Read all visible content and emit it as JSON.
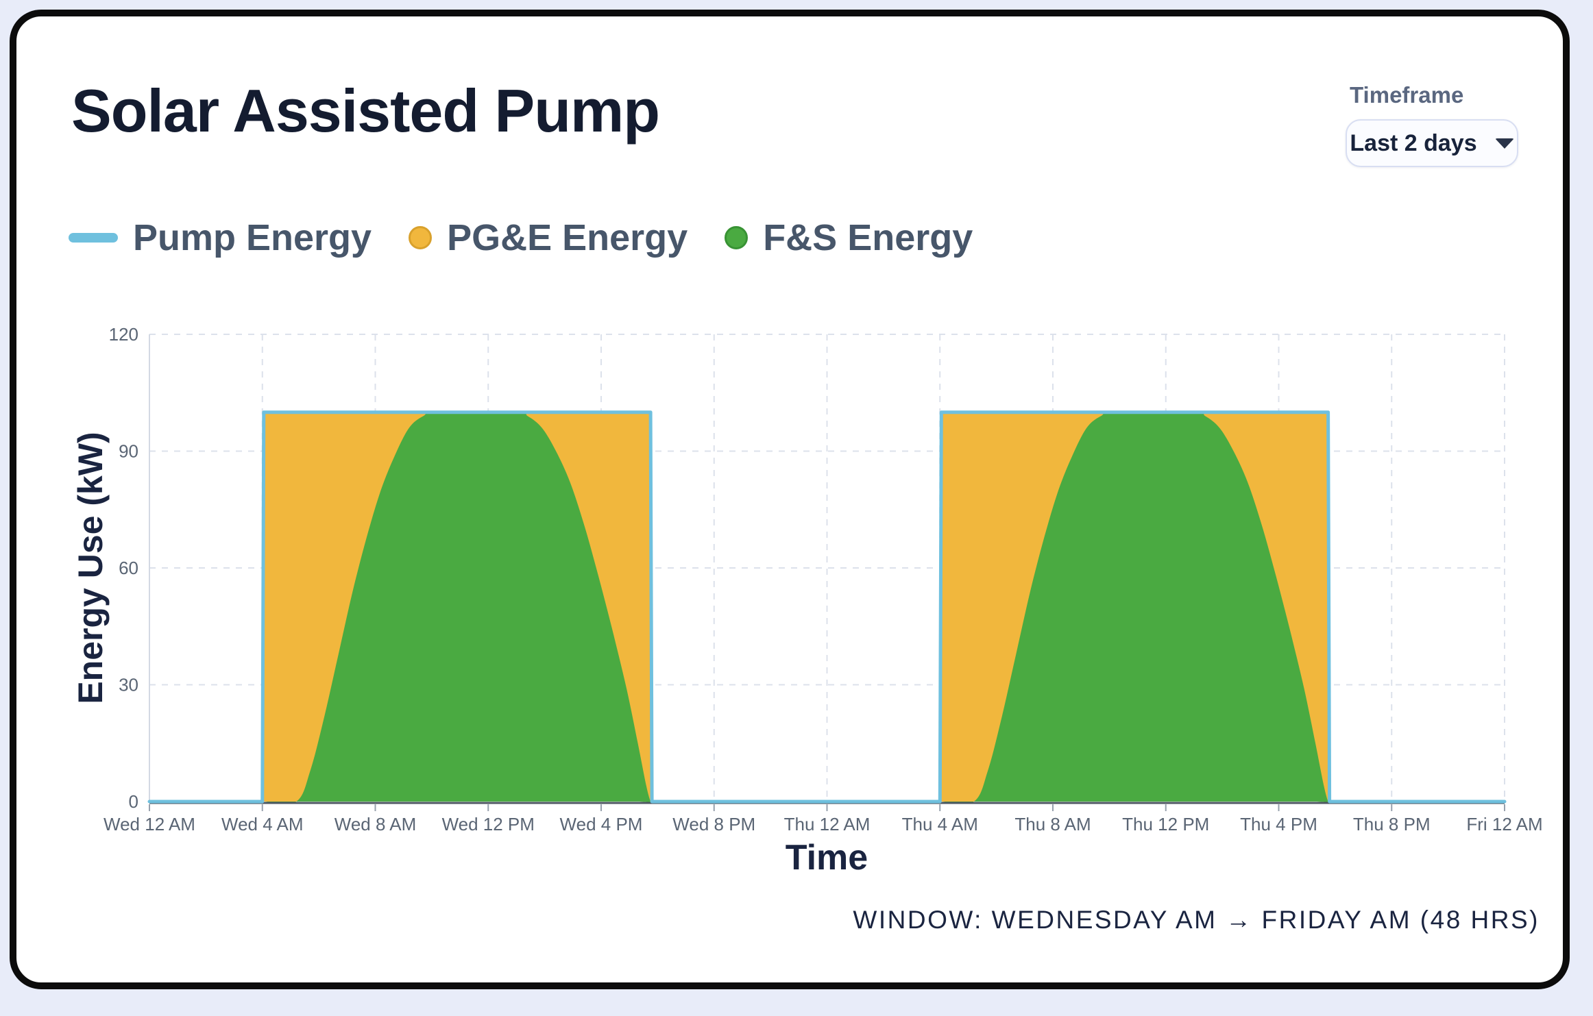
{
  "page": {
    "title": "Solar Assisted Pump"
  },
  "timeframe": {
    "label": "Timeframe",
    "selected": "Last 2 days",
    "icon": "chevron-down-icon"
  },
  "legend": [
    {
      "label": "Pump Energy",
      "marker": "line-dash",
      "color": "#6fc0de"
    },
    {
      "label": "PG&E Energy",
      "marker": "circle",
      "color": "#f1b73d",
      "ring": "#d9a12c"
    },
    {
      "label": "F&S Energy",
      "marker": "circle",
      "color": "#4aaa41",
      "ring": "#389334"
    }
  ],
  "chart_data": {
    "type": "area",
    "stacking_note": "F&S + PG&E = Pump total; PG&E is the band between the F&S area and the Pump line",
    "xlabel": "Time",
    "ylabel": "Energy Use (kW)",
    "ylim": [
      0,
      120
    ],
    "xlim_hours": [
      0,
      48
    ],
    "grid": "dashed",
    "y_ticks": [
      0,
      30,
      60,
      90,
      120
    ],
    "x_ticks": [
      {
        "t": 0,
        "label": "Wed 12 AM"
      },
      {
        "t": 4,
        "label": "Wed 4 AM"
      },
      {
        "t": 8,
        "label": "Wed 8 AM"
      },
      {
        "t": 12,
        "label": "Wed 12 PM"
      },
      {
        "t": 16,
        "label": "Wed 4 PM"
      },
      {
        "t": 20,
        "label": "Wed 8 PM"
      },
      {
        "t": 24,
        "label": "Thu 12 AM"
      },
      {
        "t": 28,
        "label": "Thu 4 AM"
      },
      {
        "t": 32,
        "label": "Thu 8 AM"
      },
      {
        "t": 36,
        "label": "Thu 12 PM"
      },
      {
        "t": 40,
        "label": "Thu 4 PM"
      },
      {
        "t": 44,
        "label": "Thu 8 PM"
      },
      {
        "t": 48,
        "label": "Fri 12 AM"
      }
    ],
    "x_hours": [
      0,
      4,
      4.05,
      5.2,
      5.7,
      6.2,
      6.7,
      7.2,
      7.7,
      8.2,
      8.7,
      9.2,
      9.7,
      10.2,
      13,
      13.4,
      13.9,
      14.4,
      14.9,
      15.4,
      15.9,
      16.4,
      16.9,
      17.3,
      17.6,
      17.75,
      17.8,
      24,
      28,
      28.05,
      29.2,
      29.7,
      30.2,
      30.7,
      31.2,
      31.7,
      32.2,
      32.7,
      33.2,
      33.7,
      34.2,
      37,
      37.4,
      37.9,
      38.4,
      38.9,
      39.4,
      39.9,
      40.4,
      40.9,
      41.3,
      41.6,
      41.75,
      41.8,
      48
    ],
    "series": [
      {
        "name": "Pump Energy",
        "render": "line",
        "color": "#6fc0de",
        "values": [
          0,
          0,
          100,
          100,
          100,
          100,
          100,
          100,
          100,
          100,
          100,
          100,
          100,
          100,
          100,
          100,
          100,
          100,
          100,
          100,
          100,
          100,
          100,
          100,
          100,
          100,
          0,
          0,
          0,
          100,
          100,
          100,
          100,
          100,
          100,
          100,
          100,
          100,
          100,
          100,
          100,
          100,
          100,
          100,
          100,
          100,
          100,
          100,
          100,
          100,
          100,
          100,
          100,
          0,
          0
        ]
      },
      {
        "name": "PG&E Energy",
        "render": "band",
        "color": "#f1b73d",
        "values": [
          0,
          0,
          100,
          100,
          92,
          78,
          62,
          46,
          32,
          20,
          11,
          4,
          1,
          0,
          0,
          1,
          4,
          10,
          18,
          29,
          42,
          56,
          71,
          85,
          96,
          100,
          0,
          0,
          0,
          100,
          100,
          92,
          78,
          62,
          46,
          32,
          20,
          11,
          4,
          1,
          0,
          0,
          1,
          4,
          10,
          18,
          29,
          42,
          56,
          71,
          85,
          96,
          100,
          0,
          0
        ]
      },
      {
        "name": "F&S Energy",
        "render": "area",
        "color": "#4aaa41",
        "values": [
          0,
          0,
          0,
          0,
          8,
          22,
          38,
          54,
          68,
          80,
          89,
          96,
          99,
          100,
          100,
          99,
          96,
          90,
          82,
          71,
          58,
          44,
          29,
          15,
          4,
          0,
          0,
          0,
          0,
          0,
          0,
          8,
          22,
          38,
          54,
          68,
          80,
          89,
          96,
          99,
          100,
          100,
          99,
          96,
          90,
          82,
          71,
          58,
          44,
          29,
          15,
          4,
          0,
          0,
          0
        ]
      }
    ],
    "annotation": "WINDOW: WEDNESDAY AM → FRIDAY AM (48 HRS)"
  }
}
